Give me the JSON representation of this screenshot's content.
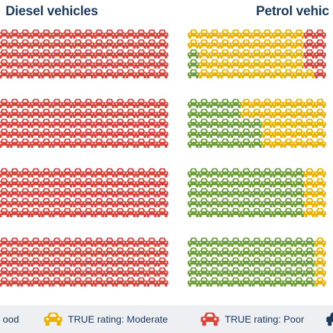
{
  "header": {
    "diesel_title": "Diesel vehicles",
    "petrol_title": "Petrol vehic"
  },
  "colors": {
    "good": "#6e9e3a",
    "moderate": "#eab200",
    "poor": "#d8433c"
  },
  "legend": {
    "items": [
      {
        "label": "ood",
        "rating": "good"
      },
      {
        "label": "TRUE rating: Moderate",
        "rating": "moderate"
      },
      {
        "label": "TRUE rating: Poor",
        "rating": "poor"
      }
    ]
  },
  "chart_data": {
    "type": "waffle",
    "icon": "car-icon",
    "rows_per_group": 5,
    "categories": [
      "Good",
      "Moderate",
      "Poor"
    ],
    "panels": [
      {
        "name": "Diesel vehicles",
        "groups": [
          {
            "rows": [
              {
                "good": 0,
                "moderate": 0,
                "poor": 16
              },
              {
                "good": 0,
                "moderate": 0,
                "poor": 16
              },
              {
                "good": 0,
                "moderate": 0,
                "poor": 16
              },
              {
                "good": 0,
                "moderate": 0,
                "poor": 16
              },
              {
                "good": 0,
                "moderate": 0,
                "poor": 16
              }
            ]
          },
          {
            "rows": [
              {
                "good": 0,
                "moderate": 0,
                "poor": 16
              },
              {
                "good": 0,
                "moderate": 0,
                "poor": 16
              },
              {
                "good": 0,
                "moderate": 0,
                "poor": 16
              },
              {
                "good": 0,
                "moderate": 0,
                "poor": 16
              },
              {
                "good": 0,
                "moderate": 0,
                "poor": 16
              }
            ]
          },
          {
            "rows": [
              {
                "good": 0,
                "moderate": 0,
                "poor": 16
              },
              {
                "good": 0,
                "moderate": 0,
                "poor": 16
              },
              {
                "good": 0,
                "moderate": 0,
                "poor": 16
              },
              {
                "good": 0,
                "moderate": 0,
                "poor": 16
              },
              {
                "good": 0,
                "moderate": 0,
                "poor": 16
              }
            ]
          },
          {
            "rows": [
              {
                "good": 0,
                "moderate": 0,
                "poor": 16
              },
              {
                "good": 0,
                "moderate": 0,
                "poor": 16
              },
              {
                "good": 0,
                "moderate": 0,
                "poor": 16
              },
              {
                "good": 0,
                "moderate": 0,
                "poor": 16
              },
              {
                "good": 0,
                "moderate": 0,
                "poor": 16
              }
            ]
          }
        ]
      },
      {
        "name": "Petrol vehic",
        "groups": [
          {
            "rows": [
              {
                "good": 0,
                "moderate": 11,
                "poor": 2
              },
              {
                "good": 0,
                "moderate": 11,
                "poor": 2
              },
              {
                "good": 1,
                "moderate": 10,
                "poor": 2
              },
              {
                "good": 1,
                "moderate": 10,
                "poor": 2
              },
              {
                "good": 1,
                "moderate": 11,
                "poor": 1
              }
            ]
          },
          {
            "rows": [
              {
                "good": 5,
                "moderate": 8,
                "poor": 0
              },
              {
                "good": 5,
                "moderate": 8,
                "poor": 0
              },
              {
                "good": 7,
                "moderate": 6,
                "poor": 0
              },
              {
                "good": 7,
                "moderate": 6,
                "poor": 0
              },
              {
                "good": 7,
                "moderate": 6,
                "poor": 0
              }
            ]
          },
          {
            "rows": [
              {
                "good": 11,
                "moderate": 2,
                "poor": 0
              },
              {
                "good": 11,
                "moderate": 2,
                "poor": 0
              },
              {
                "good": 11,
                "moderate": 2,
                "poor": 0
              },
              {
                "good": 11,
                "moderate": 2,
                "poor": 0
              },
              {
                "good": 11,
                "moderate": 2,
                "poor": 0
              }
            ]
          },
          {
            "rows": [
              {
                "good": 12,
                "moderate": 1,
                "poor": 0
              },
              {
                "good": 12,
                "moderate": 1,
                "poor": 0
              },
              {
                "good": 12,
                "moderate": 1,
                "poor": 0
              },
              {
                "good": 12,
                "moderate": 1,
                "poor": 0
              },
              {
                "good": 12,
                "moderate": 1,
                "poor": 0
              }
            ]
          }
        ]
      }
    ]
  }
}
